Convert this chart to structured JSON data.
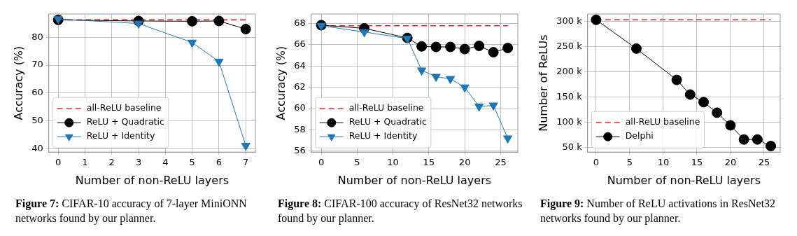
{
  "chart_data": [
    {
      "type": "line",
      "xlabel": "Number of non-ReLU layers",
      "ylabel": "Accuracy (%)",
      "x": [
        0,
        3,
        5,
        6,
        7
      ],
      "xlim": [
        -0.35,
        7.36
      ],
      "ylim": [
        38.9,
        88.3
      ],
      "xticks": [
        0,
        1,
        2,
        3,
        4,
        5,
        6,
        7
      ],
      "yticks": [
        40,
        50,
        60,
        70,
        80
      ],
      "grid": true,
      "legend": "bottom left",
      "series": [
        {
          "name": "all-ReLU baseline",
          "color": "#d62728",
          "x": [
            0,
            7
          ],
          "values": [
            86.2,
            86.2
          ],
          "line_style": "dashed",
          "marker": "none"
        },
        {
          "name": "ReLU + Quadratic",
          "color": "#000000",
          "values": [
            86.2,
            85.8,
            85.7,
            85.8,
            82.9
          ],
          "line_style": "solid",
          "marker": "circle"
        },
        {
          "name": "ReLU + Identity",
          "color": "#1f77b4",
          "values": [
            86.5,
            84.9,
            78.1,
            71.3,
            41.2
          ],
          "line_style": "solid",
          "marker": "triangle"
        }
      ],
      "annotations": [
        "Figure 7: CIFAR-10 accuracy of 7-layer MiniONN networks found by our planner."
      ]
    },
    {
      "type": "line",
      "xlabel": "Number of non-ReLU layers",
      "ylabel": "Accuracy (%)",
      "x": [
        0,
        6,
        12,
        14,
        16,
        18,
        20,
        22,
        24,
        26
      ],
      "xlim": [
        -1.4,
        27.4
      ],
      "ylim": [
        55.9,
        68.9
      ],
      "xticks": [
        0,
        5,
        10,
        15,
        20,
        25
      ],
      "yticks": [
        56,
        58,
        60,
        62,
        64,
        66,
        68
      ],
      "grid": true,
      "legend": "bottom left",
      "series": [
        {
          "name": "all-ReLU baseline",
          "color": "#d62728",
          "x": [
            0,
            26
          ],
          "values": [
            67.8,
            67.8
          ],
          "line_style": "dashed",
          "marker": "none"
        },
        {
          "name": "ReLU + Quadratic",
          "color": "#000000",
          "values": [
            67.85,
            67.55,
            66.65,
            65.85,
            65.8,
            65.8,
            65.6,
            65.9,
            65.3,
            65.7
          ],
          "line_style": "solid",
          "marker": "circle"
        },
        {
          "name": "ReLU + Identity",
          "color": "#1f77b4",
          "values": [
            67.8,
            67.2,
            66.6,
            63.6,
            63.0,
            62.8,
            62.0,
            60.2,
            60.3,
            57.2
          ],
          "line_style": "solid",
          "marker": "triangle"
        }
      ],
      "annotations": [
        "Figure 8: CIFAR-100 accuracy of ResNet32 networks found by our planner."
      ]
    },
    {
      "type": "line",
      "xlabel": "Number of non-ReLU layers",
      "ylabel": "Number of ReLUs",
      "x": [
        0,
        6,
        12,
        14,
        16,
        18,
        20,
        22,
        24,
        26
      ],
      "xlim": [
        -1.27,
        27.4
      ],
      "ylim": [
        41000,
        314500
      ],
      "xticks": [
        0,
        5,
        10,
        15,
        20,
        25
      ],
      "yticks": [
        {
          "value": 50000,
          "label": "50 k"
        },
        {
          "value": 100000,
          "label": "100 k"
        },
        {
          "value": 150000,
          "label": "150 k"
        },
        {
          "value": 200000,
          "label": "200 k"
        },
        {
          "value": 250000,
          "label": "250 k"
        },
        {
          "value": 300000,
          "label": "300 k"
        }
      ],
      "grid": true,
      "legend": "bottom left",
      "series": [
        {
          "name": "all-ReLU baseline",
          "color": "#d62728",
          "x": [
            0,
            26
          ],
          "values": [
            303000,
            303000
          ],
          "line_style": "dashed",
          "marker": "none"
        },
        {
          "name": "Delphi",
          "color": "#000000",
          "values": [
            303000,
            246000,
            184000,
            155000,
            140000,
            119000,
            94000,
            66000,
            66000,
            53000
          ],
          "line_style": "solid",
          "marker": "circle"
        }
      ],
      "annotations": [
        "Figure 9: Number of ReLU activations in ResNet32 networks found by our planner."
      ]
    }
  ]
}
